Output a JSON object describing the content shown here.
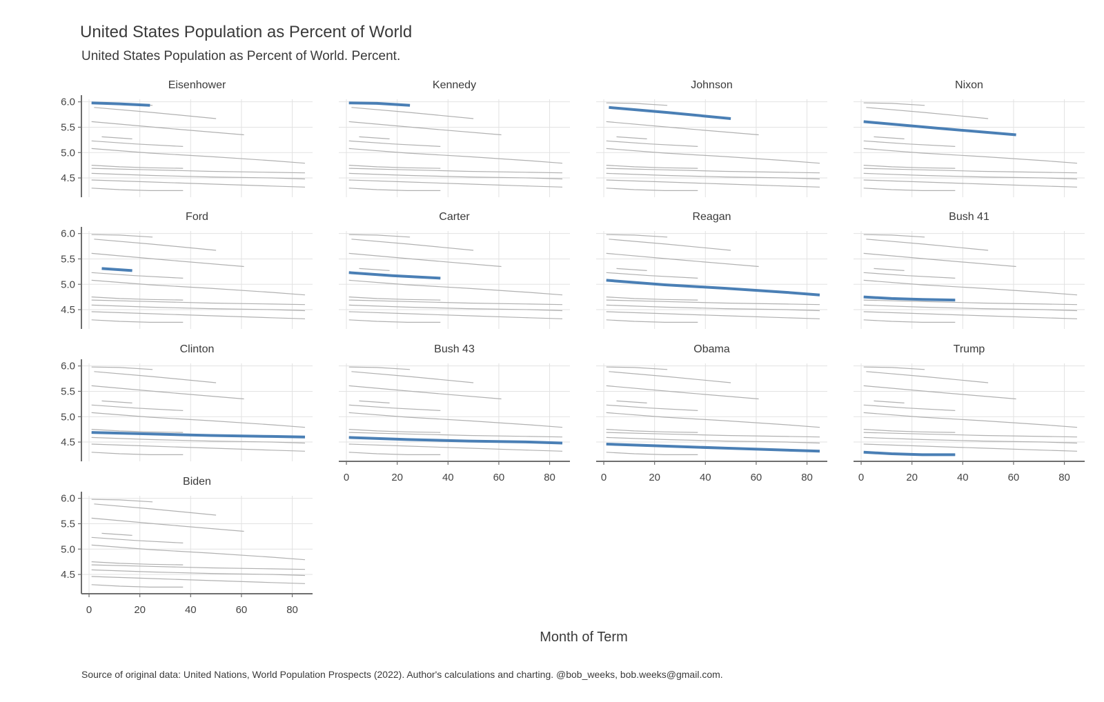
{
  "colors": {
    "highlight": "#4a7fb5",
    "background_series": "#b0b0b0",
    "grid": "#e2e2e2",
    "axis": "#6e6e6e"
  },
  "chart_data": {
    "type": "line",
    "title": "United States Population as Percent of World",
    "subtitle": "United States Population as Percent of World. Percent.",
    "xlabel": "Month of Term",
    "ylabel": "",
    "caption": "Source of original data: United Nations, World Population Prospects (2022). Author's calculations and charting. @bob_weeks, bob.weeks@gmail.com.",
    "xlim": [
      -3,
      88
    ],
    "ylim": [
      4.12,
      6.05
    ],
    "x_ticks": [
      0,
      20,
      40,
      60,
      80
    ],
    "x_tick_labels": [
      "0",
      "20",
      "40",
      "60",
      "80"
    ],
    "y_ticks": [
      4.5,
      5.0,
      5.5,
      6.0
    ],
    "y_tick_labels": [
      "4.5",
      "5.0",
      "5.5",
      "6.0"
    ],
    "grid": true,
    "facet_columns": 4,
    "facet_layout": "wrap",
    "background_series_shown_in_every_panel": true,
    "series": [
      {
        "name": "Eisenhower",
        "x": [
          1,
          12,
          24
        ],
        "y": [
          5.98,
          5.96,
          5.93
        ]
      },
      {
        "name": "Kennedy",
        "x": [
          1,
          12,
          25
        ],
        "y": [
          5.98,
          5.97,
          5.93
        ]
      },
      {
        "name": "Johnson",
        "x": [
          2,
          25,
          50
        ],
        "y": [
          5.89,
          5.79,
          5.67
        ]
      },
      {
        "name": "Nixon",
        "x": [
          1,
          30,
          61
        ],
        "y": [
          5.61,
          5.48,
          5.35
        ]
      },
      {
        "name": "Ford",
        "x": [
          5,
          17
        ],
        "y": [
          5.31,
          5.27
        ]
      },
      {
        "name": "Carter",
        "x": [
          1,
          18,
          37
        ],
        "y": [
          5.23,
          5.17,
          5.12
        ]
      },
      {
        "name": "Reagan",
        "x": [
          1,
          24,
          48,
          72,
          85
        ],
        "y": [
          5.08,
          4.99,
          4.92,
          4.84,
          4.79
        ]
      },
      {
        "name": "Bush 41",
        "x": [
          1,
          12,
          24,
          37
        ],
        "y": [
          4.75,
          4.72,
          4.7,
          4.69
        ]
      },
      {
        "name": "Clinton",
        "x": [
          1,
          24,
          48,
          72,
          85
        ],
        "y": [
          4.69,
          4.66,
          4.63,
          4.61,
          4.6
        ]
      },
      {
        "name": "Bush 43",
        "x": [
          1,
          24,
          48,
          72,
          85
        ],
        "y": [
          4.59,
          4.55,
          4.52,
          4.5,
          4.48
        ]
      },
      {
        "name": "Obama",
        "x": [
          1,
          24,
          48,
          72,
          85
        ],
        "y": [
          4.46,
          4.42,
          4.38,
          4.34,
          4.32
        ]
      },
      {
        "name": "Trump",
        "x": [
          1,
          12,
          24,
          37
        ],
        "y": [
          4.3,
          4.27,
          4.25,
          4.25
        ]
      },
      {
        "name": "Biden",
        "x": [],
        "y": []
      }
    ],
    "background_series": [
      {
        "x": [
          1,
          12,
          25
        ],
        "y": [
          5.98,
          5.97,
          5.93
        ]
      },
      {
        "x": [
          2,
          25,
          50
        ],
        "y": [
          5.89,
          5.79,
          5.67
        ]
      },
      {
        "x": [
          1,
          30,
          61
        ],
        "y": [
          5.61,
          5.48,
          5.35
        ]
      },
      {
        "x": [
          5,
          17
        ],
        "y": [
          5.31,
          5.27
        ]
      },
      {
        "x": [
          1,
          18,
          37
        ],
        "y": [
          5.23,
          5.17,
          5.12
        ]
      },
      {
        "x": [
          1,
          24,
          48,
          72,
          85
        ],
        "y": [
          5.08,
          4.99,
          4.92,
          4.84,
          4.79
        ]
      },
      {
        "x": [
          1,
          12,
          24,
          37
        ],
        "y": [
          4.75,
          4.72,
          4.7,
          4.69
        ]
      },
      {
        "x": [
          1,
          24,
          48,
          72,
          85
        ],
        "y": [
          4.69,
          4.66,
          4.63,
          4.61,
          4.6
        ]
      },
      {
        "x": [
          1,
          24,
          48,
          72,
          85
        ],
        "y": [
          4.59,
          4.55,
          4.52,
          4.5,
          4.48
        ]
      },
      {
        "x": [
          1,
          24,
          48,
          72,
          85
        ],
        "y": [
          4.46,
          4.42,
          4.38,
          4.34,
          4.32
        ]
      },
      {
        "x": [
          1,
          12,
          24,
          37
        ],
        "y": [
          4.3,
          4.27,
          4.25,
          4.25
        ]
      }
    ]
  }
}
